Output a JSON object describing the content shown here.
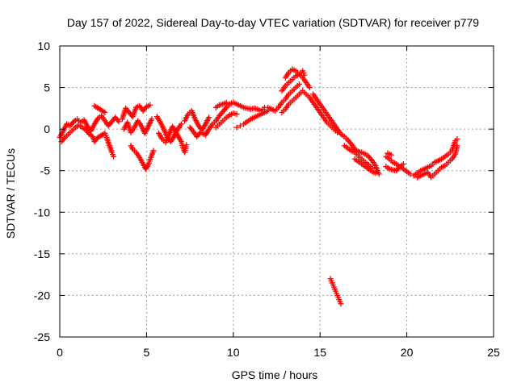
{
  "chart_data": {
    "type": "scatter",
    "title": "Day 157 of 2022, Sidereal Day-to-day VTEC variation (SDTVAR) for receiver p779",
    "xlabel": "GPS time / hours",
    "ylabel": "SDTVAR / TECUs",
    "xlim": [
      0,
      25
    ],
    "ylim": [
      -25,
      10
    ],
    "x_ticks": [
      0,
      5,
      10,
      15,
      20,
      25
    ],
    "y_ticks": [
      -25,
      -20,
      -15,
      -10,
      -5,
      0,
      5,
      10
    ],
    "grid": true,
    "marker": "+",
    "marker_color": "#ff0000",
    "series": [
      {
        "name": "SDTVAR",
        "points": [
          [
            0.0,
            -1.0
          ],
          [
            0.2,
            -0.2
          ],
          [
            0.4,
            0.6
          ],
          [
            0.6,
            0.4
          ],
          [
            0.8,
            0.9
          ],
          [
            1.0,
            1.2
          ],
          [
            1.2,
            0.8
          ],
          [
            1.4,
            1.1
          ],
          [
            1.6,
            0.3
          ],
          [
            1.8,
            -0.2
          ],
          [
            2.0,
            0.6
          ],
          [
            2.2,
            1.3
          ],
          [
            2.4,
            1.6
          ],
          [
            2.6,
            1.0
          ],
          [
            2.8,
            0.4
          ],
          [
            3.0,
            0.9
          ],
          [
            3.2,
            1.4
          ],
          [
            3.4,
            0.9
          ],
          [
            2.0,
            2.8
          ],
          [
            2.6,
            2.0
          ],
          [
            0.1,
            -1.5
          ],
          [
            0.3,
            -1.0
          ],
          [
            0.5,
            -0.6
          ],
          [
            0.7,
            -0.2
          ],
          [
            0.9,
            0.2
          ],
          [
            1.1,
            0.5
          ],
          [
            1.3,
            0.2
          ],
          [
            1.5,
            -0.1
          ],
          [
            1.7,
            -0.6
          ],
          [
            1.9,
            -0.9
          ],
          [
            2.0,
            -1.5
          ],
          [
            2.2,
            -1.0
          ],
          [
            2.6,
            -0.5
          ],
          [
            2.7,
            -1.0
          ],
          [
            2.8,
            -1.6
          ],
          [
            2.9,
            -2.2
          ],
          [
            3.0,
            -2.8
          ],
          [
            3.1,
            -3.3
          ],
          [
            3.6,
            1.2
          ],
          [
            3.8,
            2.5
          ],
          [
            4.0,
            2.0
          ],
          [
            4.2,
            1.5
          ],
          [
            4.4,
            2.6
          ],
          [
            4.6,
            2.8
          ],
          [
            4.8,
            2.2
          ],
          [
            5.0,
            2.7
          ],
          [
            5.2,
            2.9
          ],
          [
            3.7,
            0.0
          ],
          [
            3.9,
            0.8
          ],
          [
            4.1,
            -0.4
          ],
          [
            4.3,
            0.2
          ],
          [
            4.5,
            1.0
          ],
          [
            4.7,
            0.4
          ],
          [
            4.9,
            -0.5
          ],
          [
            5.1,
            0.3
          ],
          [
            5.3,
            1.2
          ],
          [
            4.1,
            -2.0
          ],
          [
            4.2,
            -2.4
          ],
          [
            4.4,
            -2.8
          ],
          [
            4.6,
            -3.4
          ],
          [
            4.8,
            -4.2
          ],
          [
            4.95,
            -4.8
          ],
          [
            5.1,
            -4.3
          ],
          [
            5.25,
            -3.4
          ],
          [
            5.4,
            -2.6
          ],
          [
            5.6,
            1.5
          ],
          [
            5.8,
            0.8
          ],
          [
            6.0,
            0.0
          ],
          [
            6.2,
            -1.0
          ],
          [
            6.4,
            -1.5
          ],
          [
            6.6,
            -0.8
          ],
          [
            6.8,
            0.0
          ],
          [
            7.0,
            0.6
          ],
          [
            5.7,
            -0.5
          ],
          [
            5.9,
            -1.2
          ],
          [
            6.1,
            -1.6
          ],
          [
            6.3,
            -0.6
          ],
          [
            6.5,
            0.3
          ],
          [
            7.0,
            -1.5
          ],
          [
            7.1,
            -2.2
          ],
          [
            7.2,
            -2.8
          ],
          [
            7.3,
            -1.9
          ],
          [
            7.2,
            1.0
          ],
          [
            7.4,
            1.8
          ],
          [
            7.6,
            2.2
          ],
          [
            7.8,
            1.2
          ],
          [
            8.0,
            0.4
          ],
          [
            8.2,
            -0.1
          ],
          [
            8.4,
            0.6
          ],
          [
            8.6,
            1.4
          ],
          [
            7.5,
            0.2
          ],
          [
            7.7,
            -0.3
          ],
          [
            7.9,
            -0.9
          ],
          [
            8.1,
            -0.4
          ],
          [
            8.4,
            -0.7
          ],
          [
            8.6,
            0.0
          ],
          [
            8.8,
            0.6
          ],
          [
            9.0,
            1.0
          ],
          [
            9.2,
            1.6
          ],
          [
            9.4,
            2.1
          ],
          [
            9.6,
            2.6
          ],
          [
            9.8,
            3.0
          ],
          [
            10.0,
            3.2
          ],
          [
            10.2,
            3.0
          ],
          [
            10.4,
            2.8
          ],
          [
            10.6,
            2.6
          ],
          [
            10.8,
            2.5
          ],
          [
            11.0,
            2.4
          ],
          [
            11.2,
            2.5
          ],
          [
            11.4,
            2.4
          ],
          [
            11.6,
            2.2
          ],
          [
            11.8,
            2.6
          ],
          [
            9.0,
            0.2
          ],
          [
            9.2,
            0.6
          ],
          [
            9.4,
            1.0
          ],
          [
            9.6,
            1.4
          ],
          [
            9.8,
            1.7
          ],
          [
            10.0,
            1.9
          ],
          [
            10.2,
            1.8
          ],
          [
            9.0,
            2.6
          ],
          [
            9.2,
            2.9
          ],
          [
            9.4,
            3.0
          ],
          [
            9.6,
            3.2
          ],
          [
            10.6,
            0.6
          ],
          [
            10.8,
            0.9
          ],
          [
            11.0,
            1.2
          ],
          [
            11.2,
            1.4
          ],
          [
            11.4,
            1.6
          ],
          [
            11.6,
            1.8
          ],
          [
            11.8,
            2.0
          ],
          [
            12.0,
            2.2
          ],
          [
            10.4,
            0.4
          ],
          [
            10.2,
            0.2
          ],
          [
            12.0,
            2.6
          ],
          [
            12.2,
            2.4
          ],
          [
            12.4,
            2.2
          ],
          [
            12.6,
            2.6
          ],
          [
            12.8,
            3.2
          ],
          [
            13.0,
            3.6
          ],
          [
            13.2,
            4.2
          ],
          [
            13.4,
            4.6
          ],
          [
            13.6,
            5.0
          ],
          [
            13.8,
            5.4
          ],
          [
            12.8,
            4.6
          ],
          [
            13.0,
            5.2
          ],
          [
            13.2,
            5.6
          ],
          [
            13.4,
            6.0
          ],
          [
            13.6,
            6.4
          ],
          [
            13.8,
            6.6
          ],
          [
            14.0,
            6.2
          ],
          [
            14.2,
            5.6
          ],
          [
            14.4,
            5.0
          ],
          [
            13.0,
            6.2
          ],
          [
            13.2,
            6.8
          ],
          [
            13.4,
            7.2
          ],
          [
            13.6,
            7.0
          ],
          [
            13.8,
            6.6
          ],
          [
            14.0,
            7.0
          ],
          [
            14.1,
            6.5
          ],
          [
            12.8,
            2.0
          ],
          [
            13.0,
            2.4
          ],
          [
            13.2,
            3.0
          ],
          [
            13.4,
            3.4
          ],
          [
            13.6,
            3.8
          ],
          [
            13.8,
            4.2
          ],
          [
            14.0,
            4.6
          ],
          [
            14.2,
            4.2
          ],
          [
            14.4,
            3.8
          ],
          [
            14.6,
            3.2
          ],
          [
            14.8,
            2.6
          ],
          [
            15.0,
            2.0
          ],
          [
            15.2,
            1.4
          ],
          [
            15.4,
            0.8
          ],
          [
            15.6,
            0.4
          ],
          [
            15.8,
            0.0
          ],
          [
            16.0,
            -0.4
          ],
          [
            14.6,
            4.2
          ],
          [
            14.8,
            3.6
          ],
          [
            15.0,
            3.0
          ],
          [
            15.2,
            2.4
          ],
          [
            15.4,
            1.8
          ],
          [
            15.6,
            1.2
          ],
          [
            15.8,
            0.6
          ],
          [
            16.0,
            0.0
          ],
          [
            16.2,
            -0.6
          ],
          [
            16.4,
            -0.9
          ],
          [
            16.6,
            -1.3
          ],
          [
            16.8,
            -1.8
          ],
          [
            17.0,
            -2.4
          ],
          [
            17.2,
            -2.7
          ],
          [
            17.4,
            -2.8
          ],
          [
            17.6,
            -3.0
          ],
          [
            17.8,
            -3.3
          ],
          [
            18.0,
            -3.8
          ],
          [
            18.2,
            -4.4
          ],
          [
            18.3,
            -5.0
          ],
          [
            18.4,
            -5.4
          ],
          [
            16.4,
            -2.0
          ],
          [
            16.6,
            -2.3
          ],
          [
            16.8,
            -2.6
          ],
          [
            17.0,
            -2.8
          ],
          [
            17.2,
            -3.2
          ],
          [
            17.4,
            -3.6
          ],
          [
            17.6,
            -4.0
          ],
          [
            17.8,
            -4.3
          ],
          [
            18.0,
            -4.7
          ],
          [
            17.0,
            -3.6
          ],
          [
            17.2,
            -3.9
          ],
          [
            17.4,
            -4.2
          ],
          [
            17.6,
            -4.5
          ],
          [
            17.8,
            -4.8
          ],
          [
            18.0,
            -5.1
          ],
          [
            18.2,
            -5.3
          ],
          [
            15.6,
            -18.0
          ],
          [
            15.7,
            -18.5
          ],
          [
            15.8,
            -19.0
          ],
          [
            15.9,
            -19.5
          ],
          [
            16.0,
            -20.0
          ],
          [
            16.1,
            -20.5
          ],
          [
            16.2,
            -21.0
          ],
          [
            18.8,
            -3.3
          ],
          [
            19.0,
            -3.6
          ],
          [
            19.2,
            -4.0
          ],
          [
            19.4,
            -4.2
          ],
          [
            19.6,
            -4.5
          ],
          [
            19.8,
            -4.8
          ],
          [
            20.0,
            -5.1
          ],
          [
            20.2,
            -5.4
          ],
          [
            18.8,
            -4.5
          ],
          [
            19.0,
            -4.8
          ],
          [
            19.2,
            -4.9
          ],
          [
            19.4,
            -5.0
          ],
          [
            19.6,
            -4.5
          ],
          [
            19.8,
            -4.2
          ],
          [
            18.9,
            -2.9
          ],
          [
            19.1,
            -3.1
          ],
          [
            20.4,
            -5.6
          ],
          [
            20.6,
            -5.3
          ],
          [
            20.8,
            -5.0
          ],
          [
            21.0,
            -4.8
          ],
          [
            21.2,
            -4.6
          ],
          [
            21.4,
            -4.4
          ],
          [
            21.6,
            -4.0
          ],
          [
            21.8,
            -3.8
          ],
          [
            22.0,
            -3.6
          ],
          [
            22.2,
            -3.3
          ],
          [
            22.4,
            -3.0
          ],
          [
            22.6,
            -2.6
          ],
          [
            22.8,
            -1.4
          ],
          [
            22.9,
            -1.2
          ],
          [
            20.6,
            -5.8
          ],
          [
            20.8,
            -5.6
          ],
          [
            21.0,
            -5.4
          ],
          [
            21.2,
            -5.2
          ],
          [
            21.4,
            -5.8
          ],
          [
            21.6,
            -5.4
          ],
          [
            21.8,
            -5.0
          ],
          [
            22.0,
            -4.6
          ],
          [
            22.2,
            -4.4
          ],
          [
            22.4,
            -4.0
          ],
          [
            22.6,
            -3.6
          ],
          [
            22.8,
            -3.0
          ],
          [
            22.9,
            -2.0
          ]
        ]
      }
    ]
  }
}
